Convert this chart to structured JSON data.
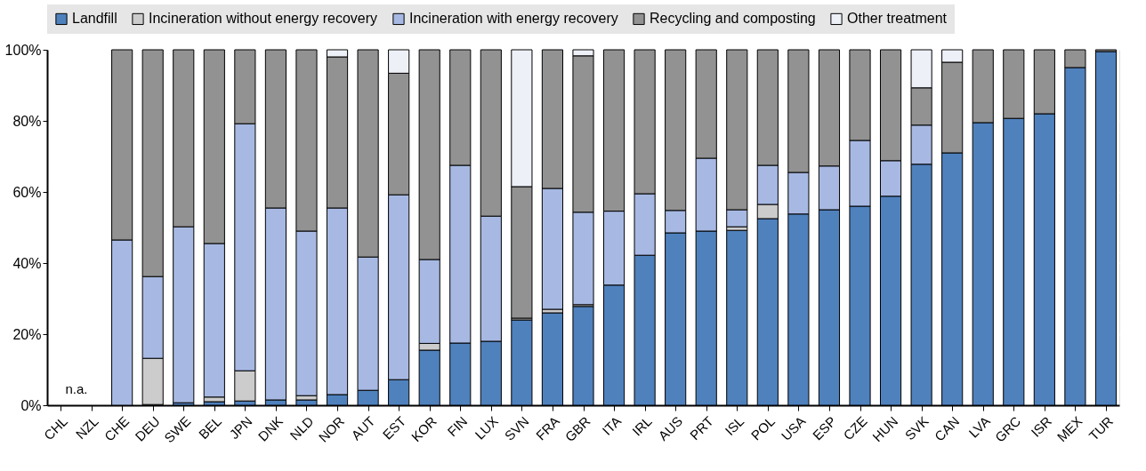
{
  "chart_data": {
    "type": "bar",
    "stacked": true,
    "categories": [
      "CHL",
      "NZL",
      "CHE",
      "DEU",
      "SWE",
      "BEL",
      "JPN",
      "DNK",
      "NLD",
      "NOR",
      "AUT",
      "EST",
      "KOR",
      "FIN",
      "LUX",
      "SVN",
      "FRA",
      "GBR",
      "ITA",
      "IRL",
      "AUS",
      "PRT",
      "ISL",
      "POL",
      "USA",
      "ESP",
      "CZE",
      "HUN",
      "SVK",
      "CAN",
      "LVA",
      "GRC",
      "ISR",
      "MEX",
      "TUR"
    ],
    "series": [
      {
        "name": "Landfill",
        "color": "#4f81bd",
        "values": [
          null,
          null,
          0,
          0.2,
          0.7,
          1,
          1.2,
          1.5,
          1.5,
          3,
          4.2,
          7.2,
          15.5,
          17.5,
          18,
          24,
          26,
          27.8,
          33.8,
          42.2,
          48.5,
          49,
          49.2,
          52.5,
          53.8,
          55,
          56,
          58.8,
          67.8,
          71,
          79.5,
          80.7,
          82,
          95,
          99.5
        ]
      },
      {
        "name": "Incineration without energy recovery",
        "color": "#cccccc",
        "values": [
          null,
          null,
          0,
          13,
          0,
          1.3,
          8.5,
          0,
          1.2,
          0,
          0,
          0,
          1.9,
          0,
          0,
          0.5,
          1,
          0.5,
          0,
          0,
          0,
          0,
          1,
          4,
          0,
          0,
          0,
          0,
          0,
          0,
          0,
          0,
          0,
          0,
          0
        ]
      },
      {
        "name": "Incineration with energy recovery",
        "color": "#a7b9e3",
        "values": [
          null,
          null,
          46.5,
          23,
          49.5,
          43.2,
          69.5,
          54,
          46.3,
          52.5,
          37.5,
          52,
          23.6,
          50,
          35.2,
          0,
          34,
          26,
          20.8,
          17.3,
          6.3,
          20.5,
          4.8,
          11,
          11.7,
          12.3,
          18.5,
          10,
          11,
          0,
          0,
          0,
          0,
          0,
          0
        ]
      },
      {
        "name": "Recycling and composting",
        "color": "#929292",
        "values": [
          null,
          null,
          53.5,
          63.8,
          49.8,
          54.5,
          20.8,
          44.5,
          51,
          42.5,
          58.3,
          34.2,
          59,
          32.5,
          46.8,
          37,
          39,
          44,
          45.4,
          40.5,
          45.2,
          30.5,
          45,
          32.5,
          34.5,
          32.7,
          25.5,
          31.2,
          10.5,
          25.5,
          20.5,
          19.3,
          18,
          5,
          0.5
        ]
      },
      {
        "name": "Other treatment",
        "color": "#eef0f8",
        "values": [
          null,
          null,
          0,
          0,
          0,
          0,
          0,
          0,
          0,
          2,
          0,
          6.6,
          0,
          0,
          0,
          38.5,
          0,
          1.7,
          0,
          0,
          0,
          0,
          0,
          0,
          0,
          0,
          0,
          0,
          10.7,
          3.5,
          0,
          0,
          0,
          0,
          0
        ]
      }
    ],
    "ylim": [
      0,
      100
    ],
    "yticks": [
      {
        "value": 0,
        "label": "0%"
      },
      {
        "value": 20,
        "label": "20%"
      },
      {
        "value": 40,
        "label": "40%"
      },
      {
        "value": 60,
        "label": "60%"
      },
      {
        "value": 80,
        "label": "80%"
      },
      {
        "value": 100,
        "label": "100%"
      }
    ],
    "grid": "y",
    "legend": "top",
    "annotations": [
      "n.a."
    ]
  }
}
